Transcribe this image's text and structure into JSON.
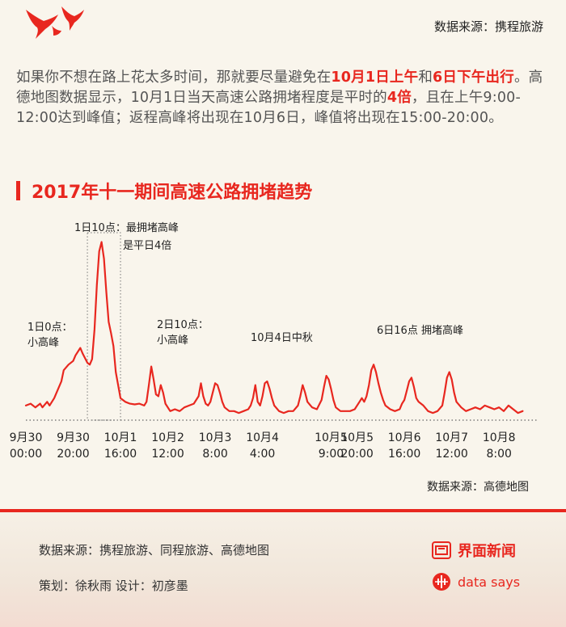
{
  "header": {
    "source": "数据来源：携程旅游"
  },
  "intro": {
    "p1": "如果你不想在路上花太多时间，那就要尽量避免在",
    "hl1": "10月1日上午",
    "p2": "和",
    "hl2": "6日下午出行",
    "p3": "。高德地图数据显示，10月1日当天高速公路拥堵程度是平时的",
    "hl3": "4倍",
    "p4": "，且在上午9:00-12:00达到峰值；返程高峰将出现在10月6日，峰值将出现在15:00-20:00。"
  },
  "chart_title": "2017年十一期间高速公路拥堵趋势",
  "chart_data": {
    "type": "line",
    "title": "2017年十一期间高速公路拥堵趋势",
    "xlabel": "",
    "ylabel": "",
    "x_ticks": [
      {
        "date": "9月30",
        "time": "00:00",
        "hour": 0
      },
      {
        "date": "9月30",
        "time": "20:00",
        "hour": 20
      },
      {
        "date": "10月1",
        "time": "16:00",
        "hour": 40
      },
      {
        "date": "10月2",
        "time": "12:00",
        "hour": 60
      },
      {
        "date": "10月3",
        "time": "8:00",
        "hour": 80
      },
      {
        "date": "10月4",
        "time": "4:00",
        "hour": 100
      },
      {
        "date": "10月5",
        "time": "9:00",
        "hour": 129
      },
      {
        "date": "10月5",
        "time": "20:00",
        "hour": 140
      },
      {
        "date": "10月6",
        "time": "16:00",
        "hour": 160
      },
      {
        "date": "10月7",
        "time": "12:00",
        "hour": 180
      },
      {
        "date": "10月8",
        "time": "8:00",
        "hour": 200
      }
    ],
    "xlim": [
      0,
      216
    ],
    "ylim": [
      0,
      5
    ],
    "grid": false,
    "series": [
      {
        "color": "#e8271f",
        "points": [
          [
            0,
            0.35
          ],
          [
            2,
            0.4
          ],
          [
            4,
            0.3
          ],
          [
            6,
            0.4
          ],
          [
            7,
            0.3
          ],
          [
            9,
            0.45
          ],
          [
            10,
            0.35
          ],
          [
            12,
            0.55
          ],
          [
            13,
            0.7
          ],
          [
            15,
            1.0
          ],
          [
            16,
            1.3
          ],
          [
            18,
            1.45
          ],
          [
            20,
            1.55
          ],
          [
            21,
            1.7
          ],
          [
            23,
            1.9
          ],
          [
            24,
            1.75
          ],
          [
            26,
            1.5
          ],
          [
            27,
            1.45
          ],
          [
            28,
            1.6
          ],
          [
            29,
            2.4
          ],
          [
            30,
            3.6
          ],
          [
            31,
            4.5
          ],
          [
            32,
            4.75
          ],
          [
            33,
            4.3
          ],
          [
            34,
            3.4
          ],
          [
            35,
            2.6
          ],
          [
            36,
            2.3
          ],
          [
            37,
            1.95
          ],
          [
            38,
            1.25
          ],
          [
            39,
            0.9
          ],
          [
            40,
            0.55
          ],
          [
            42,
            0.45
          ],
          [
            44,
            0.4
          ],
          [
            46,
            0.38
          ],
          [
            48,
            0.4
          ],
          [
            50,
            0.35
          ],
          [
            51,
            0.45
          ],
          [
            52,
            0.9
          ],
          [
            53,
            1.4
          ],
          [
            54,
            1.05
          ],
          [
            55,
            0.65
          ],
          [
            56,
            0.6
          ],
          [
            57,
            0.9
          ],
          [
            58,
            0.7
          ],
          [
            59,
            0.4
          ],
          [
            61,
            0.2
          ],
          [
            63,
            0.25
          ],
          [
            65,
            0.2
          ],
          [
            67,
            0.3
          ],
          [
            69,
            0.35
          ],
          [
            71,
            0.4
          ],
          [
            73,
            0.6
          ],
          [
            74,
            0.95
          ],
          [
            75,
            0.6
          ],
          [
            76,
            0.4
          ],
          [
            77,
            0.35
          ],
          [
            78,
            0.45
          ],
          [
            79,
            0.7
          ],
          [
            80,
            0.95
          ],
          [
            81,
            0.9
          ],
          [
            82,
            0.7
          ],
          [
            83,
            0.45
          ],
          [
            84,
            0.3
          ],
          [
            86,
            0.2
          ],
          [
            88,
            0.2
          ],
          [
            90,
            0.15
          ],
          [
            92,
            0.2
          ],
          [
            94,
            0.25
          ],
          [
            95,
            0.35
          ],
          [
            96,
            0.55
          ],
          [
            97,
            0.9
          ],
          [
            98,
            0.45
          ],
          [
            99,
            0.35
          ],
          [
            100,
            0.6
          ],
          [
            101,
            0.95
          ],
          [
            102,
            1.0
          ],
          [
            103,
            0.8
          ],
          [
            104,
            0.55
          ],
          [
            105,
            0.35
          ],
          [
            107,
            0.2
          ],
          [
            109,
            0.15
          ],
          [
            111,
            0.2
          ],
          [
            113,
            0.2
          ],
          [
            115,
            0.35
          ],
          [
            116,
            0.6
          ],
          [
            117,
            0.9
          ],
          [
            118,
            0.7
          ],
          [
            119,
            0.45
          ],
          [
            121,
            0.3
          ],
          [
            123,
            0.25
          ],
          [
            125,
            0.5
          ],
          [
            126,
            0.85
          ],
          [
            127,
            1.15
          ],
          [
            128,
            1.05
          ],
          [
            129,
            0.8
          ],
          [
            130,
            0.5
          ],
          [
            131,
            0.3
          ],
          [
            133,
            0.2
          ],
          [
            135,
            0.2
          ],
          [
            137,
            0.2
          ],
          [
            139,
            0.25
          ],
          [
            141,
            0.45
          ],
          [
            142,
            0.55
          ],
          [
            143,
            0.45
          ],
          [
            144,
            0.6
          ],
          [
            145,
            0.9
          ],
          [
            146,
            1.3
          ],
          [
            147,
            1.45
          ],
          [
            148,
            1.25
          ],
          [
            149,
            0.95
          ],
          [
            150,
            0.7
          ],
          [
            151,
            0.5
          ],
          [
            152,
            0.35
          ],
          [
            154,
            0.25
          ],
          [
            156,
            0.2
          ],
          [
            158,
            0.25
          ],
          [
            159,
            0.4
          ],
          [
            160,
            0.5
          ],
          [
            161,
            0.75
          ],
          [
            162,
            1.0
          ],
          [
            163,
            1.1
          ],
          [
            164,
            0.85
          ],
          [
            165,
            0.55
          ],
          [
            166,
            0.45
          ],
          [
            168,
            0.35
          ],
          [
            170,
            0.2
          ],
          [
            172,
            0.15
          ],
          [
            174,
            0.2
          ],
          [
            176,
            0.35
          ],
          [
            177,
            0.7
          ],
          [
            178,
            1.1
          ],
          [
            179,
            1.25
          ],
          [
            180,
            1.05
          ],
          [
            181,
            0.7
          ],
          [
            182,
            0.45
          ],
          [
            184,
            0.3
          ],
          [
            186,
            0.2
          ],
          [
            188,
            0.25
          ],
          [
            190,
            0.3
          ],
          [
            192,
            0.25
          ],
          [
            194,
            0.35
          ],
          [
            196,
            0.3
          ],
          [
            198,
            0.25
          ],
          [
            200,
            0.3
          ],
          [
            202,
            0.2
          ],
          [
            204,
            0.35
          ],
          [
            206,
            0.25
          ],
          [
            208,
            0.15
          ],
          [
            210,
            0.2
          ]
        ]
      }
    ],
    "highlight": {
      "x_start": 26,
      "x_end": 40
    },
    "annotations": [
      {
        "text": "1日10点：最拥堵高峰",
        "x": 32
      },
      {
        "text": "是平日4倍",
        "x": 32
      },
      {
        "text": "1日0点：",
        "x": 20
      },
      {
        "text": "小高峰",
        "x": 20
      },
      {
        "text": "2日10点：",
        "x": 52
      },
      {
        "text": "小高峰",
        "x": 52
      },
      {
        "text": "10月4日中秋",
        "x": 100
      },
      {
        "text": "6日16点 拥堵高峰",
        "x": 162
      }
    ]
  },
  "chart_source": "数据来源：高德地图",
  "footer": {
    "sources": "数据来源：携程旅游、同程旅游、高德地图",
    "credits": "策划：徐秋雨   设计：初彦墨",
    "brand1": "界面新闻",
    "brand2": "data says",
    "accent": "#e8271f"
  }
}
